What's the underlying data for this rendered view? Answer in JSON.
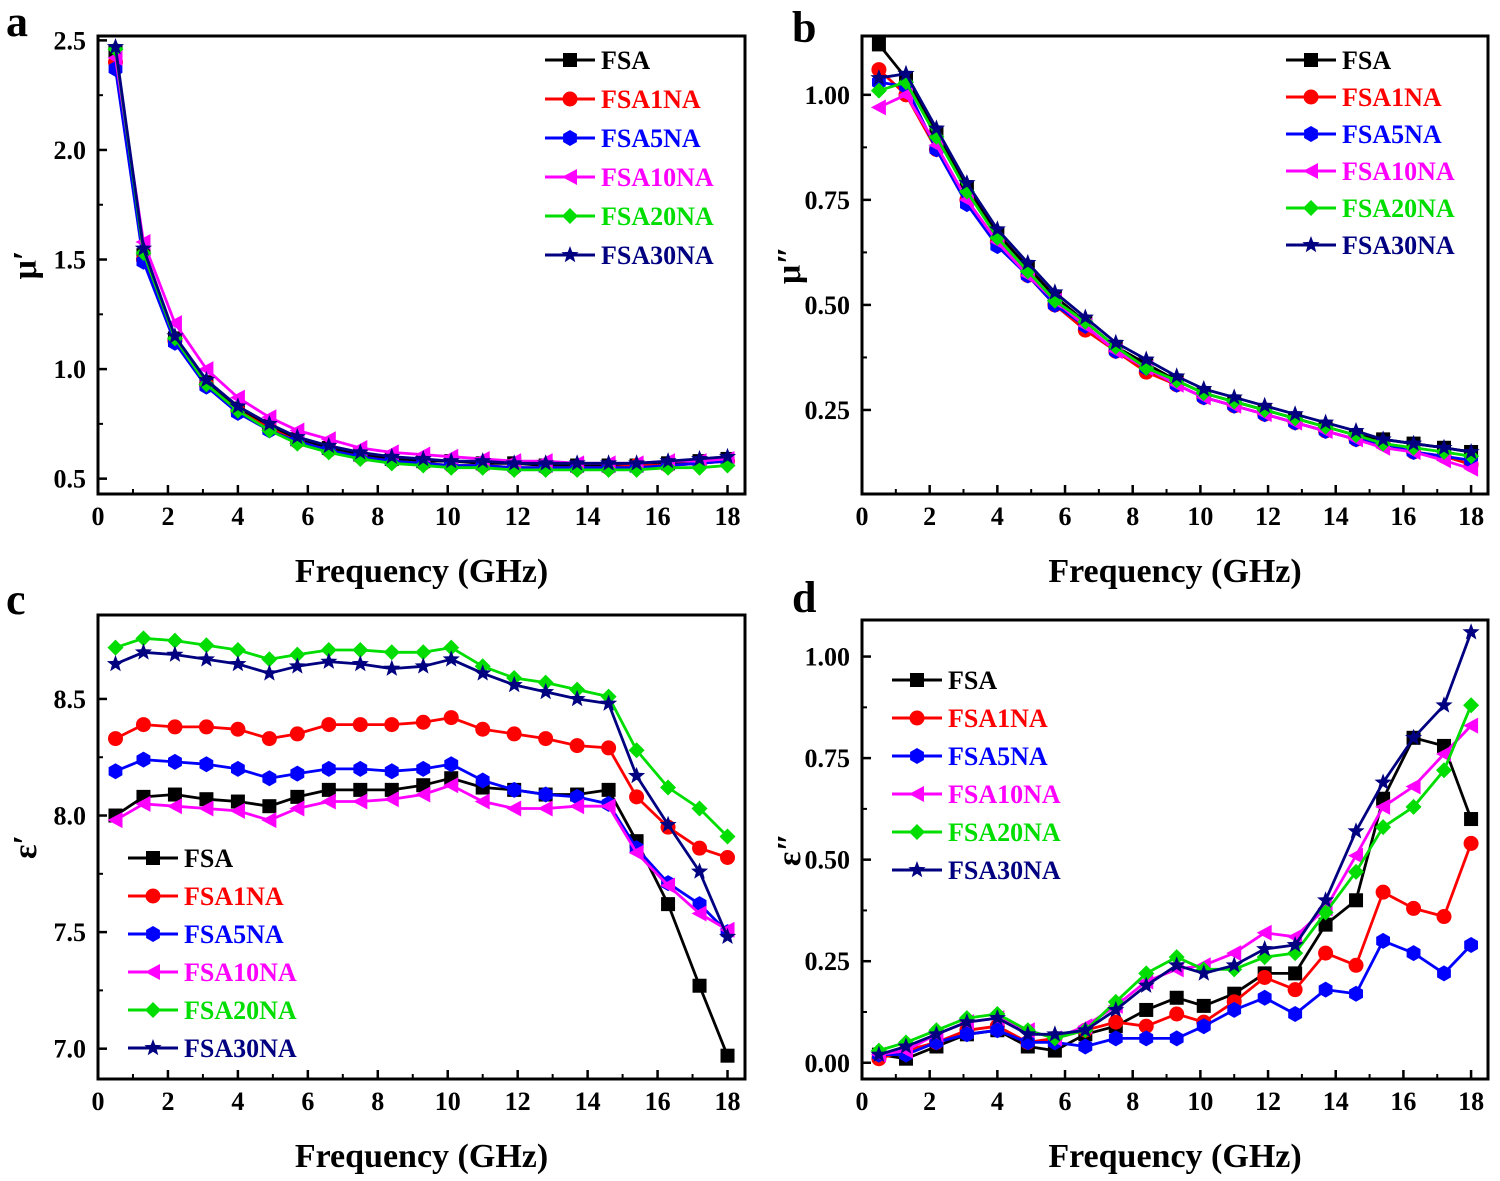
{
  "figure": {
    "colors": {
      "FSA": "#000000",
      "FSA1NA": "#ff0000",
      "FSA5NA": "#0000ff",
      "FSA10NA": "#ff00ff",
      "FSA20NA": "#00dd00",
      "FSA30NA": "#000080"
    }
  },
  "chart_data": [
    {
      "panel": "a",
      "type": "line",
      "ylabel": "μ′",
      "xlabel": "Frequency (GHz)",
      "xlim": [
        0,
        18.5
      ],
      "ylim": [
        0.43,
        2.52
      ],
      "xticks": [
        0,
        2,
        4,
        6,
        8,
        10,
        12,
        14,
        16,
        18
      ],
      "xtick_labels": [
        "0",
        "2",
        "4",
        "6",
        "8",
        "10",
        "12",
        "14",
        "16",
        "18"
      ],
      "yticks": [
        0.5,
        1.0,
        1.5,
        2.0,
        2.5
      ],
      "ytick_labels": [
        "0.5",
        "1.0",
        "1.5",
        "2.0",
        "2.5"
      ],
      "legend_position": "top-right",
      "x": [
        0.5,
        1.3,
        2.2,
        3.1,
        4.0,
        4.9,
        5.7,
        6.6,
        7.5,
        8.4,
        9.3,
        10.1,
        11.0,
        11.9,
        12.8,
        13.7,
        14.6,
        15.4,
        16.3,
        17.2,
        18.0
      ],
      "series": [
        {
          "name": "FSA",
          "marker": "square",
          "values": [
            2.45,
            1.52,
            1.14,
            0.94,
            0.82,
            0.74,
            0.68,
            0.64,
            0.61,
            0.59,
            0.58,
            0.58,
            0.57,
            0.57,
            0.56,
            0.56,
            0.56,
            0.56,
            0.57,
            0.58,
            0.59
          ]
        },
        {
          "name": "FSA1NA",
          "marker": "circle",
          "values": [
            2.4,
            1.5,
            1.13,
            0.93,
            0.81,
            0.73,
            0.67,
            0.63,
            0.6,
            0.58,
            0.57,
            0.56,
            0.56,
            0.55,
            0.55,
            0.55,
            0.55,
            0.56,
            0.56,
            0.57,
            0.58
          ]
        },
        {
          "name": "FSA5NA",
          "marker": "hexagon",
          "values": [
            2.37,
            1.49,
            1.12,
            0.92,
            0.8,
            0.72,
            0.67,
            0.63,
            0.6,
            0.58,
            0.57,
            0.56,
            0.56,
            0.55,
            0.55,
            0.55,
            0.55,
            0.55,
            0.56,
            0.57,
            0.58
          ]
        },
        {
          "name": "FSA10NA",
          "marker": "triangle-left",
          "values": [
            2.42,
            1.58,
            1.21,
            1.0,
            0.87,
            0.78,
            0.72,
            0.68,
            0.64,
            0.62,
            0.61,
            0.6,
            0.59,
            0.58,
            0.58,
            0.57,
            0.57,
            0.57,
            0.58,
            0.58,
            0.59
          ]
        },
        {
          "name": "FSA20NA",
          "marker": "diamond",
          "values": [
            2.46,
            1.53,
            1.14,
            0.93,
            0.81,
            0.72,
            0.66,
            0.62,
            0.59,
            0.57,
            0.56,
            0.55,
            0.55,
            0.54,
            0.54,
            0.54,
            0.54,
            0.54,
            0.55,
            0.55,
            0.56
          ]
        },
        {
          "name": "FSA30NA",
          "marker": "star",
          "values": [
            2.47,
            1.55,
            1.15,
            0.95,
            0.83,
            0.75,
            0.69,
            0.65,
            0.62,
            0.6,
            0.59,
            0.58,
            0.58,
            0.57,
            0.57,
            0.57,
            0.57,
            0.57,
            0.58,
            0.59,
            0.6
          ]
        }
      ]
    },
    {
      "panel": "b",
      "type": "line",
      "ylabel": "μ″",
      "xlabel": "Frequency (GHz)",
      "xlim": [
        0,
        18.5
      ],
      "ylim": [
        0.05,
        1.14
      ],
      "xticks": [
        0,
        2,
        4,
        6,
        8,
        10,
        12,
        14,
        16,
        18
      ],
      "xtick_labels": [
        "0",
        "2",
        "4",
        "6",
        "8",
        "10",
        "12",
        "14",
        "16",
        "18"
      ],
      "yticks": [
        0.25,
        0.5,
        0.75,
        1.0
      ],
      "ytick_labels": [
        "0.25",
        "0.50",
        "0.75",
        "1.00"
      ],
      "legend_position": "top-right",
      "x": [
        0.5,
        1.3,
        2.2,
        3.1,
        4.0,
        4.9,
        5.7,
        6.6,
        7.5,
        8.4,
        9.3,
        10.1,
        11.0,
        11.9,
        12.8,
        13.7,
        14.6,
        15.4,
        16.3,
        17.2,
        18.0
      ],
      "series": [
        {
          "name": "FSA",
          "marker": "square",
          "values": [
            1.12,
            1.04,
            0.91,
            0.78,
            0.67,
            0.59,
            0.52,
            0.46,
            0.4,
            0.36,
            0.32,
            0.29,
            0.27,
            0.25,
            0.23,
            0.21,
            0.19,
            0.18,
            0.17,
            0.16,
            0.15
          ]
        },
        {
          "name": "FSA1NA",
          "marker": "circle",
          "values": [
            1.06,
            1.0,
            0.87,
            0.75,
            0.65,
            0.57,
            0.5,
            0.44,
            0.39,
            0.34,
            0.31,
            0.28,
            0.26,
            0.24,
            0.22,
            0.2,
            0.18,
            0.17,
            0.15,
            0.14,
            0.12
          ]
        },
        {
          "name": "FSA5NA",
          "marker": "hexagon",
          "values": [
            1.03,
            1.02,
            0.87,
            0.74,
            0.64,
            0.57,
            0.5,
            0.45,
            0.39,
            0.35,
            0.31,
            0.28,
            0.26,
            0.24,
            0.22,
            0.2,
            0.18,
            0.17,
            0.15,
            0.14,
            0.13
          ]
        },
        {
          "name": "FSA10NA",
          "marker": "triangle-left",
          "values": [
            0.97,
            1.0,
            0.88,
            0.75,
            0.65,
            0.57,
            0.51,
            0.45,
            0.39,
            0.35,
            0.31,
            0.28,
            0.26,
            0.24,
            0.22,
            0.2,
            0.18,
            0.16,
            0.15,
            0.13,
            0.11
          ]
        },
        {
          "name": "FSA20NA",
          "marker": "diamond",
          "values": [
            1.01,
            1.03,
            0.9,
            0.77,
            0.66,
            0.58,
            0.51,
            0.46,
            0.4,
            0.35,
            0.32,
            0.29,
            0.27,
            0.25,
            0.23,
            0.21,
            0.19,
            0.17,
            0.16,
            0.15,
            0.14
          ]
        },
        {
          "name": "FSA30NA",
          "marker": "star",
          "values": [
            1.04,
            1.05,
            0.92,
            0.79,
            0.68,
            0.6,
            0.53,
            0.47,
            0.41,
            0.37,
            0.33,
            0.3,
            0.28,
            0.26,
            0.24,
            0.22,
            0.2,
            0.18,
            0.17,
            0.16,
            0.15
          ]
        }
      ]
    },
    {
      "panel": "c",
      "type": "line",
      "ylabel": "ε′",
      "xlabel": "Frequency (GHz)",
      "xlim": [
        0,
        18.5
      ],
      "ylim": [
        6.87,
        8.86
      ],
      "xticks": [
        0,
        2,
        4,
        6,
        8,
        10,
        12,
        14,
        16,
        18
      ],
      "xtick_labels": [
        "0",
        "2",
        "4",
        "6",
        "8",
        "10",
        "12",
        "14",
        "16",
        "18"
      ],
      "yticks": [
        7.0,
        7.5,
        8.0,
        8.5
      ],
      "ytick_labels": [
        "7.0",
        "7.5",
        "8.0",
        "8.5"
      ],
      "legend_position": "bottom-left",
      "x": [
        0.5,
        1.3,
        2.2,
        3.1,
        4.0,
        4.9,
        5.7,
        6.6,
        7.5,
        8.4,
        9.3,
        10.1,
        11.0,
        11.9,
        12.8,
        13.7,
        14.6,
        15.4,
        16.3,
        17.2,
        18.0
      ],
      "series": [
        {
          "name": "FSA",
          "marker": "square",
          "values": [
            8.0,
            8.08,
            8.09,
            8.07,
            8.06,
            8.04,
            8.08,
            8.11,
            8.11,
            8.11,
            8.13,
            8.16,
            8.12,
            8.11,
            8.09,
            8.09,
            8.11,
            7.89,
            7.62,
            7.27,
            6.97
          ]
        },
        {
          "name": "FSA1NA",
          "marker": "circle",
          "values": [
            8.33,
            8.39,
            8.38,
            8.38,
            8.37,
            8.33,
            8.35,
            8.39,
            8.39,
            8.39,
            8.4,
            8.42,
            8.37,
            8.35,
            8.33,
            8.3,
            8.29,
            8.08,
            7.95,
            7.86,
            7.82
          ]
        },
        {
          "name": "FSA5NA",
          "marker": "hexagon",
          "values": [
            8.19,
            8.24,
            8.23,
            8.22,
            8.2,
            8.16,
            8.18,
            8.2,
            8.2,
            8.19,
            8.2,
            8.22,
            8.15,
            8.11,
            8.09,
            8.08,
            8.05,
            7.86,
            7.71,
            7.62,
            7.5
          ]
        },
        {
          "name": "FSA10NA",
          "marker": "triangle-left",
          "values": [
            7.98,
            8.05,
            8.04,
            8.03,
            8.02,
            7.98,
            8.03,
            8.06,
            8.06,
            8.07,
            8.09,
            8.13,
            8.06,
            8.03,
            8.03,
            8.04,
            8.04,
            7.84,
            7.7,
            7.58,
            7.51
          ]
        },
        {
          "name": "FSA20NA",
          "marker": "diamond",
          "values": [
            8.72,
            8.76,
            8.75,
            8.73,
            8.71,
            8.67,
            8.69,
            8.71,
            8.71,
            8.7,
            8.7,
            8.72,
            8.64,
            8.59,
            8.57,
            8.54,
            8.51,
            8.28,
            8.12,
            8.03,
            7.91
          ]
        },
        {
          "name": "FSA30NA",
          "marker": "star",
          "values": [
            8.65,
            8.7,
            8.69,
            8.67,
            8.65,
            8.61,
            8.64,
            8.66,
            8.65,
            8.63,
            8.64,
            8.67,
            8.61,
            8.56,
            8.53,
            8.5,
            8.48,
            8.17,
            7.96,
            7.76,
            7.48
          ]
        }
      ]
    },
    {
      "panel": "d",
      "type": "line",
      "ylabel": "ε″",
      "xlabel": "Frequency (GHz)",
      "xlim": [
        0,
        18.5
      ],
      "ylim": [
        -0.04,
        1.09
      ],
      "xticks": [
        0,
        2,
        4,
        6,
        8,
        10,
        12,
        14,
        16,
        18
      ],
      "xtick_labels": [
        "0",
        "2",
        "4",
        "6",
        "8",
        "10",
        "12",
        "14",
        "16",
        "18"
      ],
      "yticks": [
        0,
        0.25,
        0.5,
        0.75,
        1.0
      ],
      "ytick_labels": [
        "0.00",
        "0.25",
        "0.50",
        "0.75",
        "1.00"
      ],
      "legend_position": "top-left",
      "x": [
        0.5,
        1.3,
        2.2,
        3.1,
        4.0,
        4.9,
        5.7,
        6.6,
        7.5,
        8.4,
        9.3,
        10.1,
        11.0,
        11.9,
        12.8,
        13.7,
        14.6,
        15.4,
        16.3,
        17.2,
        18.0
      ],
      "series": [
        {
          "name": "FSA",
          "marker": "square",
          "values": [
            0.02,
            0.01,
            0.04,
            0.07,
            0.08,
            0.04,
            0.03,
            0.07,
            0.09,
            0.13,
            0.16,
            0.14,
            0.17,
            0.22,
            0.22,
            0.34,
            0.4,
            0.65,
            0.8,
            0.78,
            0.6
          ]
        },
        {
          "name": "FSA1NA",
          "marker": "circle",
          "values": [
            0.01,
            0.03,
            0.05,
            0.08,
            0.09,
            0.05,
            0.06,
            0.08,
            0.1,
            0.09,
            0.12,
            0.1,
            0.15,
            0.21,
            0.18,
            0.27,
            0.24,
            0.42,
            0.38,
            0.36,
            0.54
          ]
        },
        {
          "name": "FSA5NA",
          "marker": "hexagon",
          "values": [
            0.02,
            0.02,
            0.05,
            0.07,
            0.08,
            0.05,
            0.05,
            0.04,
            0.06,
            0.06,
            0.06,
            0.09,
            0.13,
            0.16,
            0.12,
            0.18,
            0.17,
            0.3,
            0.27,
            0.22,
            0.29
          ]
        },
        {
          "name": "FSA10NA",
          "marker": "triangle-left",
          "values": [
            0.02,
            0.03,
            0.07,
            0.1,
            0.11,
            0.08,
            0.06,
            0.09,
            0.14,
            0.2,
            0.23,
            0.24,
            0.27,
            0.32,
            0.31,
            0.38,
            0.51,
            0.63,
            0.68,
            0.76,
            0.83
          ]
        },
        {
          "name": "FSA20NA",
          "marker": "diamond",
          "values": [
            0.03,
            0.05,
            0.08,
            0.11,
            0.12,
            0.08,
            0.06,
            0.08,
            0.15,
            0.22,
            0.26,
            0.23,
            0.23,
            0.26,
            0.27,
            0.37,
            0.47,
            0.58,
            0.63,
            0.72,
            0.88
          ]
        },
        {
          "name": "FSA30NA",
          "marker": "star",
          "values": [
            0.02,
            0.04,
            0.07,
            0.1,
            0.11,
            0.07,
            0.07,
            0.08,
            0.13,
            0.19,
            0.24,
            0.22,
            0.24,
            0.28,
            0.29,
            0.4,
            0.57,
            0.69,
            0.8,
            0.88,
            1.06
          ]
        }
      ]
    }
  ],
  "panels": {
    "a": "a",
    "b": "b",
    "c": "c",
    "d": "d"
  }
}
